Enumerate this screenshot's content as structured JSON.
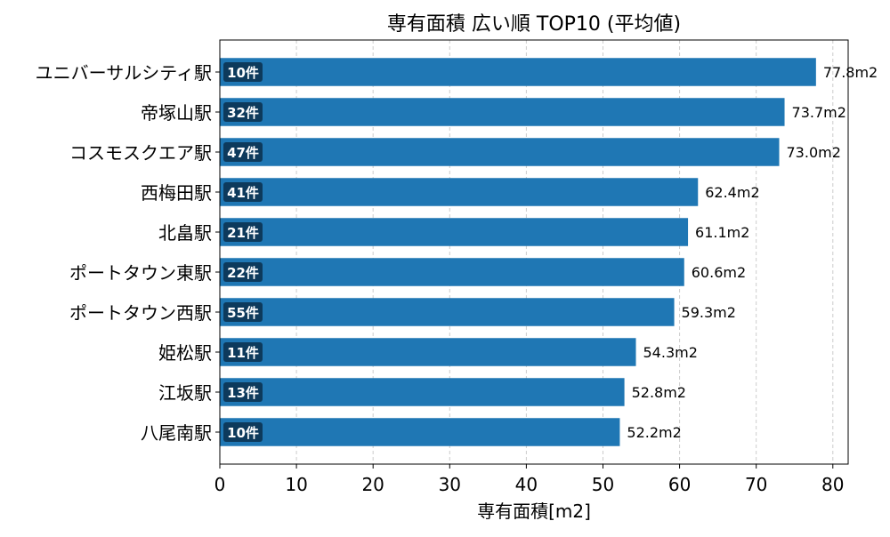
{
  "chart_data": {
    "type": "bar",
    "orientation": "horizontal",
    "title": "専有面積 広い順 TOP10 (平均値)",
    "xlabel": "専有面積[m2]",
    "ylabel": "",
    "xlim": [
      0,
      82
    ],
    "xticks": [
      0,
      10,
      20,
      30,
      40,
      50,
      60,
      70,
      80
    ],
    "grid": "x-dashed",
    "categories": [
      "ユニバーサルシティ駅",
      "帝塚山駅",
      "コスモスクエア駅",
      "西梅田駅",
      "北畠駅",
      "ポートタウン東駅",
      "ポートタウン西駅",
      "姫松駅",
      "江坂駅",
      "八尾南駅"
    ],
    "values": [
      77.8,
      73.7,
      73.0,
      62.4,
      61.1,
      60.6,
      59.3,
      54.3,
      52.8,
      52.2
    ],
    "value_labels": [
      "77.8m2",
      "73.7m2",
      "73.0m2",
      "62.4m2",
      "61.1m2",
      "60.6m2",
      "59.3m2",
      "54.3m2",
      "52.8m2",
      "52.2m2"
    ],
    "count_labels": [
      "10件",
      "32件",
      "47件",
      "41件",
      "21件",
      "22件",
      "55件",
      "11件",
      "13件",
      "10件"
    ],
    "colors": {
      "bar": "#1f77b4",
      "badge": "#0d3a5c",
      "grid": "#cccccc"
    }
  }
}
